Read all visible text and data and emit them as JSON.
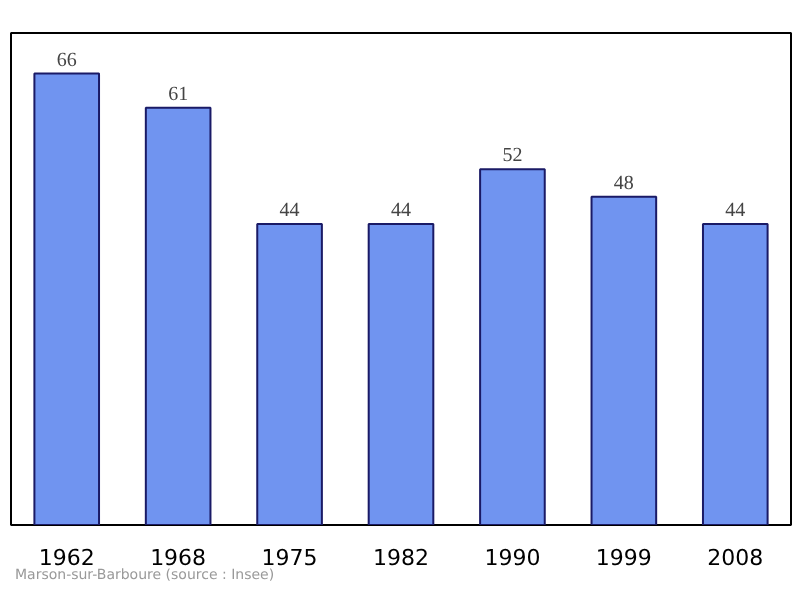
{
  "chart_data": {
    "type": "bar",
    "categories": [
      "1962",
      "1968",
      "1975",
      "1982",
      "1990",
      "1999",
      "2008"
    ],
    "values": [
      66,
      61,
      44,
      44,
      52,
      48,
      44
    ],
    "color": "#7094f0",
    "data_labels": true,
    "grid": false,
    "annotations": [
      "Marson-sur-Barboure    (source : Insee)"
    ]
  }
}
